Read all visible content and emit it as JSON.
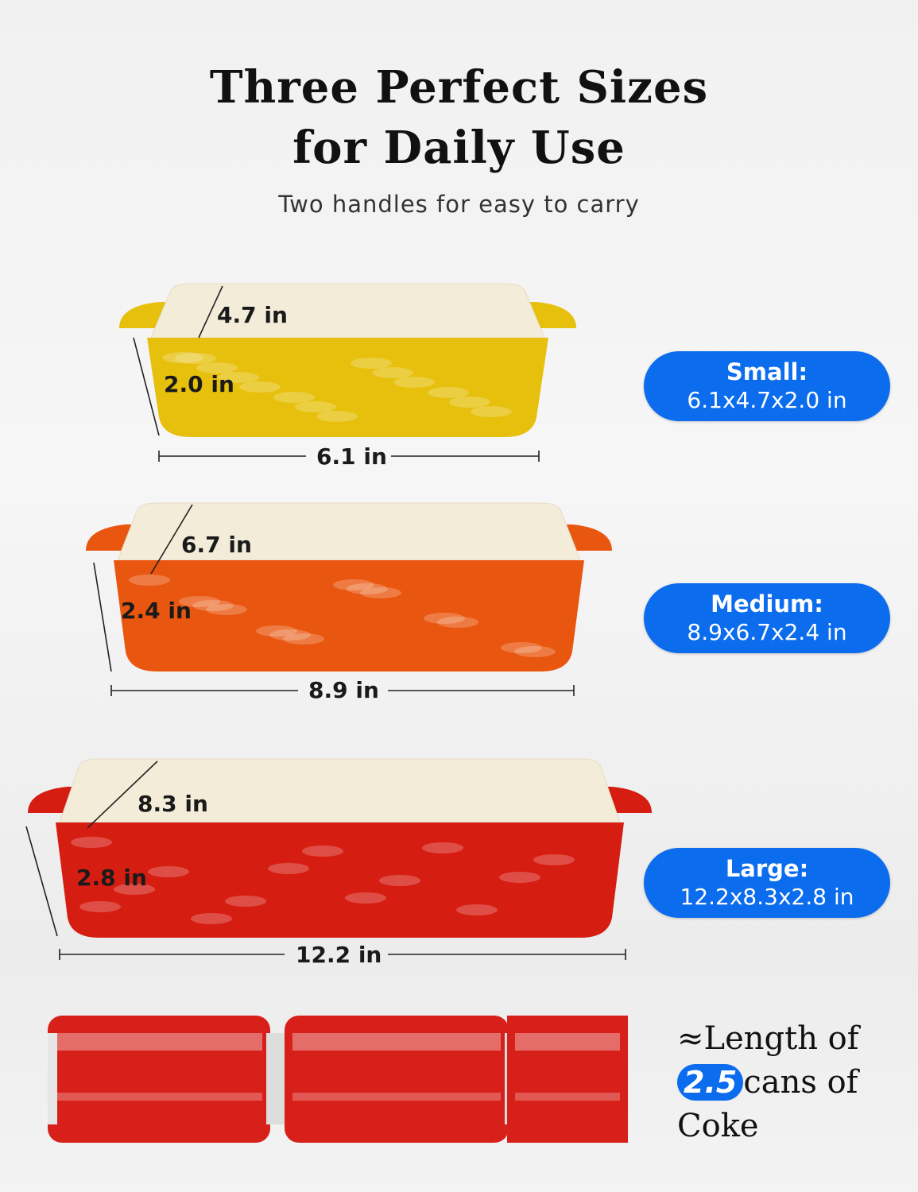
{
  "header": {
    "title_line1": "Three Perfect Sizes",
    "title_line2": "for Daily Use",
    "subtitle": "Two handles for easy to carry"
  },
  "dishes": [
    {
      "name": "Small",
      "width": "6.1 in",
      "depth": "4.7 in",
      "height": "2.0 in",
      "pill_name": "Small:",
      "pill_size": "6.1x4.7x2.0 in",
      "color": "#e6c00c"
    },
    {
      "name": "Medium",
      "width": "8.9 in",
      "depth": "6.7 in",
      "height": "2.4 in",
      "pill_name": "Medium:",
      "pill_size": "8.9x6.7x2.4 in",
      "color": "#e9560f"
    },
    {
      "name": "Large",
      "width": "12.2 in",
      "depth": "8.3 in",
      "height": "2.8 in",
      "pill_name": "Large:",
      "pill_size": "12.2x8.3x2.8 in",
      "color": "#d61d12"
    }
  ],
  "comparison": {
    "line1": "≈Length of",
    "highlight": "2.5",
    "line2": "cans of",
    "line3": "Coke",
    "can_color": "#d8201a"
  },
  "colors": {
    "pill": "#0b6cee",
    "interior": "#f3ecd8"
  }
}
